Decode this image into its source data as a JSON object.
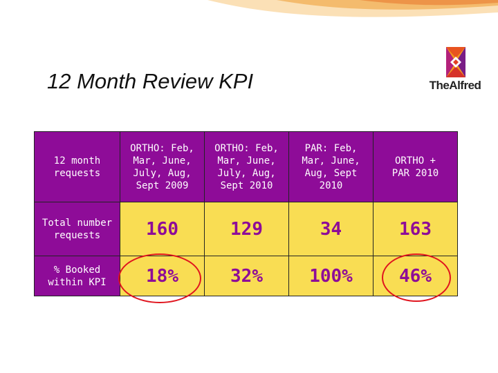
{
  "slide": {
    "title": "12 Month Review KPI",
    "logo_text": "TheAlfred"
  },
  "table": {
    "corner_label": "12 month\nrequests",
    "columns": [
      "ORTHO: Feb,\nMar, June,\nJuly, Aug,\nSept 2009",
      "ORTHO: Feb,\nMar, June,\nJuly, Aug,\nSept 2010",
      "PAR: Feb,\nMar, June,\nAug, Sept\n2010",
      "ORTHO +\nPAR 2010"
    ],
    "rows": [
      {
        "label": "Total number\nrequests",
        "values": [
          "160",
          "129",
          "34",
          "163"
        ]
      },
      {
        "label": "% Booked\nwithin KPI",
        "values": [
          "18%",
          "32%",
          "100%",
          "46%"
        ]
      }
    ]
  },
  "colors": {
    "header_fill": "#8e0c98",
    "value_fill": "#f9dd53",
    "value_text": "#8e0c98",
    "highlight_circle": "#e0141e"
  },
  "highlights": [
    "18%",
    "46%"
  ]
}
